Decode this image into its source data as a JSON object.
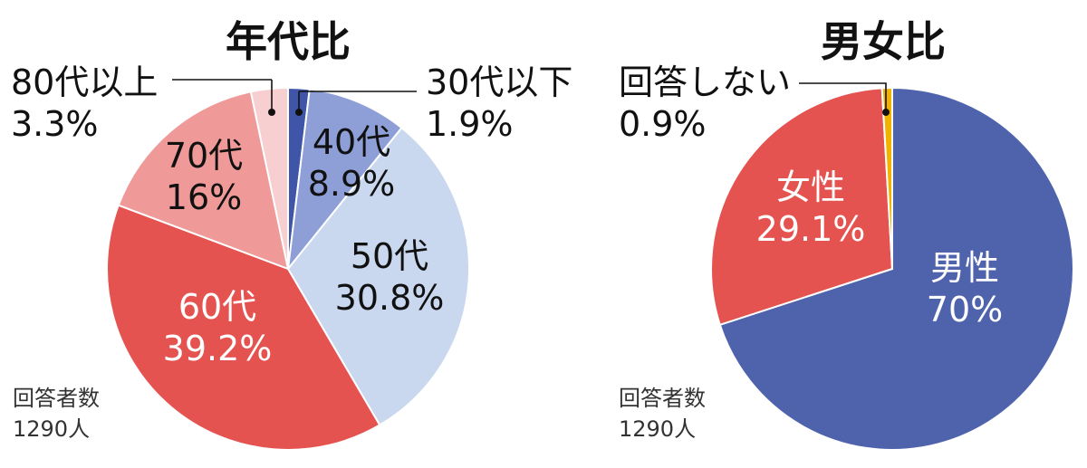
{
  "chart_data": [
    {
      "type": "pie",
      "title": "年代比",
      "respondents_label": "回答者数",
      "respondents_count": "1290人",
      "slices": [
        {
          "label": "30代以下",
          "value_text": "1.9%",
          "value": 1.9,
          "color": "#3f55a8",
          "label_color": "#111111"
        },
        {
          "label": "40代",
          "value_text": "8.9%",
          "value": 8.9,
          "color": "#8d9fd6",
          "label_color": "#111111"
        },
        {
          "label": "50代",
          "value_text": "30.8%",
          "value": 30.8,
          "color": "#c9d7ef",
          "label_color": "#111111"
        },
        {
          "label": "60代",
          "value_text": "39.2%",
          "value": 39.2,
          "color": "#e55350",
          "label_color": "#ffffff"
        },
        {
          "label": "70代",
          "value_text": "16%",
          "value": 16.0,
          "color": "#ef9a98",
          "label_color": "#111111"
        },
        {
          "label": "80代以上",
          "value_text": "3.3%",
          "value": 3.3,
          "color": "#f7cfd0",
          "label_color": "#111111"
        }
      ]
    },
    {
      "type": "pie",
      "title": "男女比",
      "respondents_label": "回答者数",
      "respondents_count": "1290人",
      "slices": [
        {
          "label": "男性",
          "value_text": "70%",
          "value": 70.0,
          "color": "#4f63ad",
          "label_color": "#ffffff"
        },
        {
          "label": "女性",
          "value_text": "29.1%",
          "value": 29.1,
          "color": "#e55350",
          "label_color": "#ffffff"
        },
        {
          "label": "回答しない",
          "value_text": "0.9%",
          "value": 0.9,
          "color": "#f2b300",
          "label_color": "#111111"
        }
      ]
    }
  ]
}
